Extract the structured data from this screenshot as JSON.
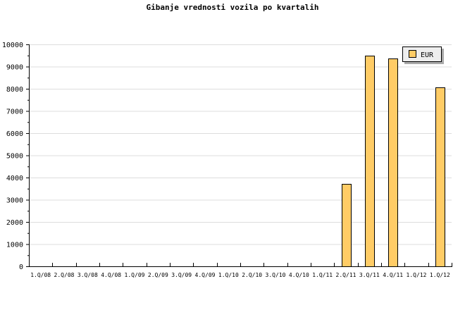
{
  "chart_data": {
    "type": "bar",
    "title": "Gibanje vrednosti vozila po kvartalih",
    "xlabel": "",
    "ylabel": "",
    "categories": [
      "1.Q/08",
      "2.Q/08",
      "3.Q/08",
      "4.Q/08",
      "1.Q/09",
      "2.Q/09",
      "3.Q/09",
      "4.Q/09",
      "1.Q/10",
      "2.Q/10",
      "3.Q/10",
      "4.Q/10",
      "1.Q/11",
      "2.Q/11",
      "3.Q/11",
      "4.Q/11",
      "1.Q/12",
      "1.Q/12"
    ],
    "series": [
      {
        "name": "EUR",
        "color": "#ffcc66",
        "values": [
          0,
          0,
          0,
          0,
          0,
          0,
          0,
          0,
          0,
          0,
          0,
          0,
          0,
          3700,
          9500,
          9350,
          0,
          8050
        ]
      }
    ],
    "ylim": [
      0,
      10000
    ],
    "yticks": [
      0,
      1000,
      2000,
      3000,
      4000,
      5000,
      6000,
      7000,
      8000,
      9000,
      10000
    ],
    "grid": true,
    "legend_placement": "top-right"
  }
}
